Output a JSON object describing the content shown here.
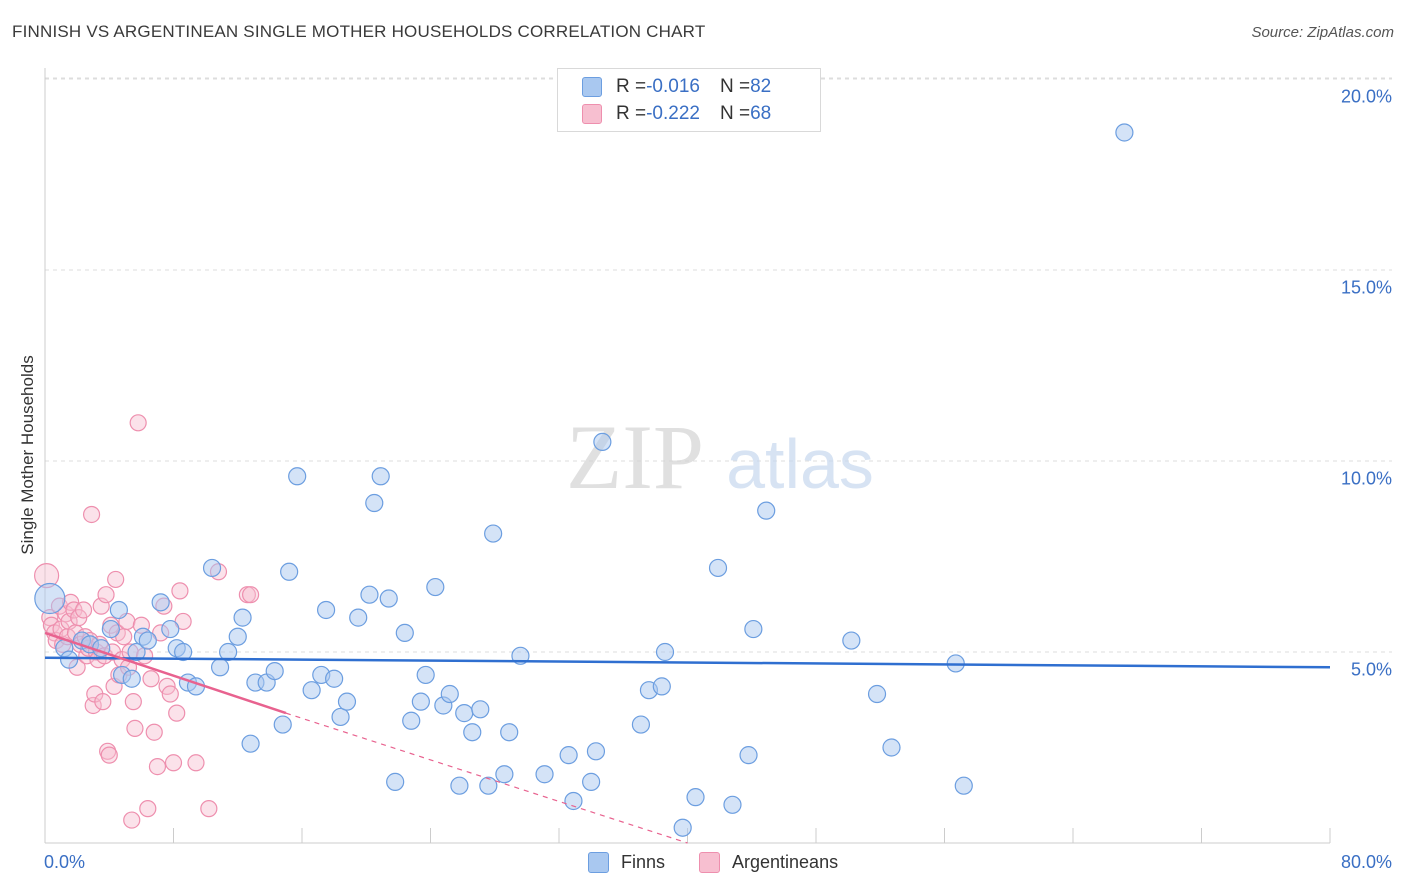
{
  "header": {
    "title": "FINNISH VS ARGENTINEAN SINGLE MOTHER HOUSEHOLDS CORRELATION CHART",
    "source": "Source: ZipAtlas.com"
  },
  "watermark": {
    "zip": "ZIP",
    "atlas": "atlas"
  },
  "legend": {
    "finns": {
      "r_label": "R = ",
      "r_value": "-0.016",
      "n_label": "N = ",
      "n_value": "82"
    },
    "argentineans": {
      "r_label": "R = ",
      "r_value": "-0.222",
      "n_label": "N = ",
      "n_value": "68"
    }
  },
  "bottom_legend": {
    "finns": "Finns",
    "argentineans": "Argentineans"
  },
  "axes": {
    "ylabel": "Single Mother Households",
    "y_ticks": [
      "20.0%",
      "15.0%",
      "10.0%",
      "5.0%"
    ],
    "x_min_label": "0.0%",
    "x_max_label": "80.0%"
  },
  "colors": {
    "finns_fill": "#a9c8f0",
    "finns_stroke": "#6c9ee0",
    "finns_line": "#2f6fd0",
    "arg_fill": "#f7bfd0",
    "arg_stroke": "#ee8fae",
    "arg_line": "#e8628f",
    "axis_text": "#3a6fc4",
    "grid": "#dddddd"
  },
  "chart_data": {
    "type": "scatter",
    "title": "FINNISH VS ARGENTINEAN SINGLE MOTHER HOUSEHOLDS CORRELATION CHART",
    "xlabel": "",
    "ylabel": "Single Mother Households",
    "xlim": [
      0,
      80
    ],
    "ylim": [
      0,
      20.5
    ],
    "y_gridlines": [
      5,
      10,
      15,
      20
    ],
    "series": [
      {
        "name": "Finns",
        "R": -0.016,
        "N": 82,
        "trend": {
          "x": [
            0,
            80
          ],
          "y": [
            4.85,
            4.6
          ]
        },
        "points": [
          [
            0.3,
            6.4
          ],
          [
            1.2,
            5.1
          ],
          [
            1.5,
            4.8
          ],
          [
            2.3,
            5.3
          ],
          [
            2.8,
            5.2
          ],
          [
            3.5,
            5.1
          ],
          [
            4.1,
            5.6
          ],
          [
            4.8,
            4.4
          ],
          [
            4.6,
            6.1
          ],
          [
            5.4,
            4.3
          ],
          [
            5.7,
            5.0
          ],
          [
            6.1,
            5.4
          ],
          [
            6.4,
            5.3
          ],
          [
            7.2,
            6.3
          ],
          [
            7.8,
            5.6
          ],
          [
            8.2,
            5.1
          ],
          [
            8.6,
            5.0
          ],
          [
            8.9,
            4.2
          ],
          [
            9.4,
            4.1
          ],
          [
            10.4,
            7.2
          ],
          [
            10.9,
            4.6
          ],
          [
            11.4,
            5.0
          ],
          [
            12.0,
            5.4
          ],
          [
            12.3,
            5.9
          ],
          [
            12.8,
            2.6
          ],
          [
            13.1,
            4.2
          ],
          [
            13.8,
            4.2
          ],
          [
            14.3,
            4.5
          ],
          [
            14.8,
            3.1
          ],
          [
            15.2,
            7.1
          ],
          [
            15.7,
            9.6
          ],
          [
            16.6,
            4.0
          ],
          [
            17.2,
            4.4
          ],
          [
            17.5,
            6.1
          ],
          [
            18.0,
            4.3
          ],
          [
            18.4,
            3.3
          ],
          [
            18.8,
            3.7
          ],
          [
            19.5,
            5.9
          ],
          [
            20.2,
            6.5
          ],
          [
            20.5,
            8.9
          ],
          [
            20.9,
            9.6
          ],
          [
            21.4,
            6.4
          ],
          [
            21.8,
            1.6
          ],
          [
            22.4,
            5.5
          ],
          [
            22.8,
            3.2
          ],
          [
            23.4,
            3.7
          ],
          [
            23.7,
            4.4
          ],
          [
            24.3,
            6.7
          ],
          [
            24.8,
            3.6
          ],
          [
            25.2,
            3.9
          ],
          [
            25.8,
            1.5
          ],
          [
            26.1,
            3.4
          ],
          [
            26.6,
            2.9
          ],
          [
            27.1,
            3.5
          ],
          [
            27.6,
            1.5
          ],
          [
            27.9,
            8.1
          ],
          [
            28.6,
            1.8
          ],
          [
            28.9,
            2.9
          ],
          [
            29.6,
            4.9
          ],
          [
            31.1,
            1.8
          ],
          [
            32.6,
            2.3
          ],
          [
            32.9,
            1.1
          ],
          [
            34.0,
            1.6
          ],
          [
            34.3,
            2.4
          ],
          [
            34.7,
            10.5
          ],
          [
            37.1,
            3.1
          ],
          [
            37.6,
            4.0
          ],
          [
            38.4,
            4.1
          ],
          [
            38.6,
            5.0
          ],
          [
            39.7,
            0.4
          ],
          [
            41.9,
            7.2
          ],
          [
            42.8,
            1.0
          ],
          [
            43.8,
            2.3
          ],
          [
            44.1,
            5.6
          ],
          [
            44.9,
            8.7
          ],
          [
            50.2,
            5.3
          ],
          [
            51.8,
            3.9
          ],
          [
            52.7,
            2.5
          ],
          [
            56.7,
            4.7
          ],
          [
            57.2,
            1.5
          ],
          [
            67.2,
            18.6
          ],
          [
            40.5,
            1.2
          ]
        ]
      },
      {
        "name": "Argentineans",
        "R": -0.222,
        "N": 68,
        "trend": {
          "x": [
            0,
            15
          ],
          "y": [
            5.5,
            3.4
          ]
        },
        "trend_extension": {
          "x": [
            15,
            40
          ],
          "y": [
            3.4,
            0
          ]
        },
        "points": [
          [
            0.1,
            7.0
          ],
          [
            0.3,
            5.9
          ],
          [
            0.4,
            5.7
          ],
          [
            0.6,
            5.5
          ],
          [
            0.7,
            5.3
          ],
          [
            0.9,
            6.2
          ],
          [
            1.0,
            5.6
          ],
          [
            1.1,
            5.2
          ],
          [
            1.3,
            6.0
          ],
          [
            1.4,
            5.4
          ],
          [
            1.5,
            5.8
          ],
          [
            1.6,
            6.3
          ],
          [
            1.8,
            6.1
          ],
          [
            1.9,
            5.5
          ],
          [
            2.0,
            4.6
          ],
          [
            2.1,
            5.9
          ],
          [
            2.2,
            5.2
          ],
          [
            2.4,
            6.1
          ],
          [
            2.5,
            5.4
          ],
          [
            2.6,
            4.9
          ],
          [
            2.7,
            5.1
          ],
          [
            2.8,
            5.3
          ],
          [
            2.9,
            8.6
          ],
          [
            3.0,
            3.6
          ],
          [
            3.1,
            3.9
          ],
          [
            3.2,
            5.0
          ],
          [
            3.3,
            4.8
          ],
          [
            3.4,
            5.2
          ],
          [
            3.5,
            6.2
          ],
          [
            3.6,
            3.7
          ],
          [
            3.7,
            4.9
          ],
          [
            3.8,
            6.5
          ],
          [
            3.9,
            2.4
          ],
          [
            4.0,
            2.3
          ],
          [
            4.1,
            5.7
          ],
          [
            4.2,
            5.0
          ],
          [
            4.3,
            4.1
          ],
          [
            4.4,
            6.9
          ],
          [
            4.5,
            5.5
          ],
          [
            4.6,
            4.4
          ],
          [
            4.8,
            4.8
          ],
          [
            4.9,
            5.4
          ],
          [
            5.1,
            5.8
          ],
          [
            5.2,
            4.6
          ],
          [
            5.3,
            5.0
          ],
          [
            5.4,
            0.6
          ],
          [
            5.5,
            3.7
          ],
          [
            5.6,
            3.0
          ],
          [
            5.8,
            11.0
          ],
          [
            6.0,
            5.7
          ],
          [
            6.2,
            4.9
          ],
          [
            6.4,
            0.9
          ],
          [
            6.6,
            4.3
          ],
          [
            6.8,
            2.9
          ],
          [
            7.0,
            2.0
          ],
          [
            7.2,
            5.5
          ],
          [
            7.4,
            6.2
          ],
          [
            7.6,
            4.1
          ],
          [
            7.8,
            3.9
          ],
          [
            8.0,
            2.1
          ],
          [
            8.2,
            3.4
          ],
          [
            8.4,
            6.6
          ],
          [
            8.6,
            5.8
          ],
          [
            9.4,
            2.1
          ],
          [
            10.2,
            0.9
          ],
          [
            10.8,
            7.1
          ],
          [
            12.6,
            6.5
          ],
          [
            12.8,
            6.5
          ]
        ]
      }
    ]
  }
}
